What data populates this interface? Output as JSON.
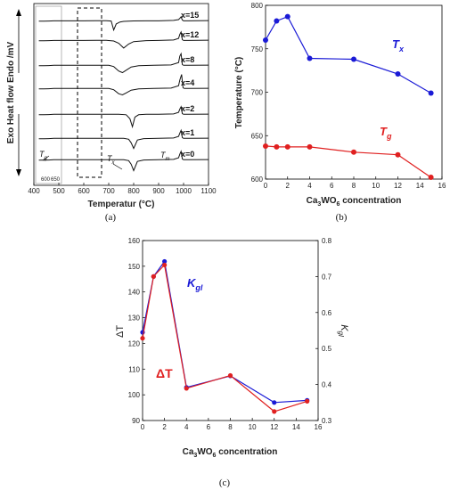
{
  "chart_data": [
    {
      "type": "line",
      "panel_label": "(a)",
      "xlabel": "Temperatur (°C)",
      "ylabel_parts": [
        "Exo",
        "Heat flow",
        "Endo /mV"
      ],
      "xlim": [
        400,
        1100
      ],
      "x_ticks": [
        400,
        500,
        600,
        700,
        800,
        900,
        1000,
        1100
      ],
      "inset_ticks": [
        600,
        650
      ],
      "series_labels": [
        "x=15",
        "x=12",
        "x=8",
        "x=4",
        "x=2",
        "x=1",
        "x=0"
      ],
      "annotations": [
        "T",
        "g",
        "T",
        "x",
        "T",
        "m"
      ],
      "curves": [
        {
          "x": [
            420,
            440,
            460,
            480,
            500,
            540,
            600,
            650,
            690,
            710,
            720,
            730,
            745,
            760,
            800,
            850,
            900,
            960,
            980,
            985,
            990,
            995,
            1000,
            1020,
            1100
          ],
          "y": [
            0.2,
            0.2,
            0.18,
            0.15,
            0.15,
            0.15,
            0.15,
            0.14,
            0.14,
            0.18,
            1.3,
            0.55,
            0.3,
            0.22,
            0.17,
            0.15,
            0.15,
            0.1,
            0.0,
            -0.15,
            -0.35,
            0.05,
            0.15,
            0.15,
            0.12
          ]
        },
        {
          "x": [
            420,
            440,
            460,
            480,
            500,
            540,
            600,
            650,
            690,
            720,
            740,
            760,
            780,
            800,
            850,
            900,
            960,
            980,
            985,
            990,
            995,
            1000,
            1020,
            1100
          ],
          "y": [
            0.2,
            0.2,
            0.18,
            0.15,
            0.15,
            0.15,
            0.15,
            0.14,
            0.14,
            0.22,
            0.5,
            1.1,
            0.6,
            0.3,
            0.18,
            0.15,
            0.1,
            -0.1,
            -0.6,
            -0.9,
            0.05,
            0.15,
            0.15,
            0.12
          ]
        },
        {
          "x": [
            420,
            440,
            460,
            480,
            500,
            540,
            600,
            650,
            700,
            720,
            740,
            755,
            770,
            790,
            820,
            880,
            950,
            980,
            985,
            990,
            995,
            1000,
            1020,
            1100
          ],
          "y": [
            0.2,
            0.2,
            0.18,
            0.15,
            0.15,
            0.15,
            0.15,
            0.14,
            0.14,
            0.3,
            0.85,
            1.05,
            0.75,
            0.35,
            0.2,
            0.15,
            0.1,
            -0.2,
            -1.0,
            -1.3,
            0.05,
            0.15,
            0.15,
            0.12
          ]
        },
        {
          "x": [
            420,
            440,
            460,
            480,
            500,
            540,
            600,
            650,
            700,
            720,
            740,
            755,
            770,
            790,
            820,
            880,
            950,
            980,
            985,
            992,
            998,
            1003,
            1020,
            1100
          ],
          "y": [
            0.2,
            0.2,
            0.18,
            0.15,
            0.15,
            0.15,
            0.15,
            0.14,
            0.14,
            0.3,
            0.8,
            0.95,
            0.7,
            0.35,
            0.2,
            0.15,
            0.1,
            -0.2,
            -0.9,
            -1.6,
            0.05,
            0.15,
            0.15,
            0.12
          ]
        },
        {
          "x": [
            420,
            440,
            460,
            480,
            500,
            540,
            600,
            650,
            700,
            740,
            770,
            785,
            795,
            805,
            820,
            850,
            900,
            960,
            980,
            985,
            990,
            995,
            1000,
            1020,
            1100
          ],
          "y": [
            0.2,
            0.2,
            0.18,
            0.15,
            0.15,
            0.15,
            0.15,
            0.14,
            0.14,
            0.15,
            0.2,
            0.7,
            1.7,
            0.5,
            0.2,
            0.15,
            0.15,
            0.1,
            -0.1,
            -0.5,
            -0.8,
            0.05,
            0.15,
            0.15,
            0.12
          ]
        },
        {
          "x": [
            420,
            440,
            460,
            480,
            500,
            540,
            600,
            650,
            700,
            760,
            780,
            790,
            800,
            815,
            840,
            900,
            960,
            980,
            985,
            990,
            995,
            1000,
            1020,
            1100
          ],
          "y": [
            0.2,
            0.2,
            0.18,
            0.15,
            0.15,
            0.15,
            0.15,
            0.14,
            0.14,
            0.15,
            0.25,
            0.7,
            1.4,
            0.35,
            0.18,
            0.15,
            0.1,
            -0.1,
            -0.5,
            -0.85,
            0.05,
            0.15,
            0.15,
            0.12
          ]
        },
        {
          "x": [
            420,
            440,
            460,
            480,
            500,
            540,
            600,
            650,
            700,
            760,
            780,
            790,
            800,
            815,
            840,
            900,
            960,
            980,
            985,
            990,
            995,
            1000,
            1020,
            1100
          ],
          "y": [
            0.2,
            0.2,
            0.18,
            0.15,
            0.15,
            0.15,
            0.15,
            0.14,
            0.14,
            0.15,
            0.25,
            0.7,
            1.5,
            0.35,
            0.18,
            0.15,
            0.1,
            -0.1,
            -0.55,
            -0.9,
            0.05,
            0.15,
            0.15,
            0.12
          ]
        }
      ]
    },
    {
      "type": "line",
      "panel_label": "(b)",
      "xlabel_parts": [
        "Ca",
        "3",
        "WO",
        "6",
        " concentration"
      ],
      "ylabel": "Temperature (°C)",
      "xlim": [
        0,
        16
      ],
      "ylim": [
        600,
        800
      ],
      "x_ticks": [
        0,
        2,
        4,
        6,
        8,
        10,
        12,
        14,
        16
      ],
      "y_ticks": [
        600,
        650,
        700,
        750,
        800
      ],
      "series": [
        {
          "name": "Tx",
          "label_main": "T",
          "label_sub": "x",
          "color": "#1a1ad6",
          "x": [
            0,
            1,
            2,
            4,
            8,
            12,
            15
          ],
          "y": [
            760,
            782,
            787,
            739,
            738,
            721,
            699
          ]
        },
        {
          "name": "Tg",
          "label_main": "T",
          "label_sub": "g",
          "color": "#e02020",
          "x": [
            0,
            1,
            2,
            4,
            8,
            12,
            15
          ],
          "y": [
            638,
            637,
            637,
            637,
            631,
            628,
            602
          ]
        }
      ]
    },
    {
      "type": "line",
      "panel_label": "(c)",
      "xlabel_parts": [
        "Ca",
        "3",
        "WO",
        "6",
        " concentration"
      ],
      "ylabel_left": "ΔT",
      "ylabel_right_parts": [
        "K",
        "gl"
      ],
      "xlim": [
        0,
        16
      ],
      "ylim_left": [
        90,
        160
      ],
      "ylim_right": [
        0.3,
        0.8
      ],
      "x_ticks": [
        0,
        2,
        4,
        6,
        8,
        10,
        12,
        14,
        16
      ],
      "y_ticks_left": [
        90,
        100,
        110,
        120,
        130,
        140,
        150,
        160
      ],
      "y_ticks_right": [
        0.3,
        0.4,
        0.5,
        0.6,
        0.7,
        0.8
      ],
      "series": [
        {
          "name": "Kgl",
          "label_main": "K",
          "label_sub": "gl",
          "color": "#1a1ad6",
          "axis": "right",
          "x": [
            0,
            1,
            2,
            4,
            8,
            12,
            15
          ],
          "y": [
            0.545,
            0.7,
            0.742,
            0.392,
            0.424,
            0.35,
            0.356
          ]
        },
        {
          "name": "ΔT",
          "label_main": "ΔT",
          "label_sub": "",
          "color": "#e02020",
          "axis": "left",
          "x": [
            0,
            1,
            2,
            4,
            8,
            12,
            15
          ],
          "y": [
            122,
            146,
            150.5,
            102.5,
            107.5,
            93.5,
            97.5
          ]
        }
      ]
    }
  ]
}
